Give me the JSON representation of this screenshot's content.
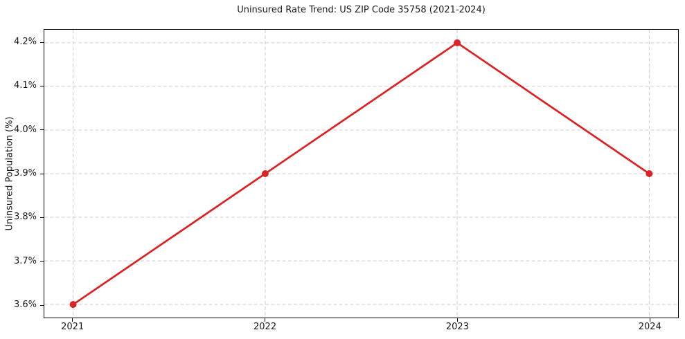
{
  "chart_data": {
    "type": "line",
    "title": "Uninsured Rate Trend: US ZIP Code 35758 (2021-2024)",
    "xlabel": "",
    "ylabel": "Uninsured Population (%)",
    "x": [
      2021,
      2022,
      2023,
      2024
    ],
    "x_tick_labels": [
      "2021",
      "2022",
      "2023",
      "2024"
    ],
    "series": [
      {
        "name": "Uninsured Population (%)",
        "values": [
          3.6,
          3.9,
          4.2,
          3.9
        ],
        "color": "#d62728",
        "marker": "circle",
        "line_width": 2.8,
        "marker_radius": 5
      }
    ],
    "y_ticks": [
      {
        "value": 3.6,
        "label": "3.6%"
      },
      {
        "value": 3.7,
        "label": "3.7%"
      },
      {
        "value": 3.8,
        "label": "3.8%"
      },
      {
        "value": 3.9,
        "label": "3.9%"
      },
      {
        "value": 4.0,
        "label": "4.0%"
      },
      {
        "value": 4.1,
        "label": "4.1%"
      },
      {
        "value": 4.2,
        "label": "4.2%"
      }
    ],
    "xlim": [
      2020.85,
      2024.15
    ],
    "ylim": [
      3.57,
      4.23
    ],
    "grid": true,
    "grid_color": "#cccccc",
    "grid_style": "dashed",
    "legend": "none",
    "background_color": "#ffffff",
    "spine_color": "#000000",
    "text_color": "#1a1a1a"
  }
}
